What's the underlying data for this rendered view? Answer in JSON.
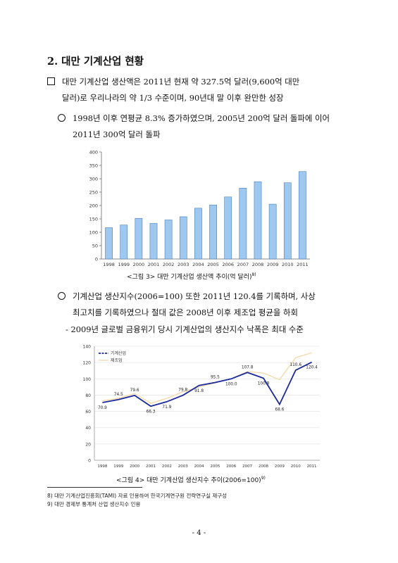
{
  "heading": "2. 대만 기계산업 현황",
  "bullet1": {
    "line1": "대만 기계산업 생산액은 2011년 현재 약 327.5억 달러(9,600억 대만",
    "line2": "달러)로 우리나라의 약 1/3 수준이며, 90년대 말 이후 완만한 성장"
  },
  "bullet2": {
    "line1": "1998년 이후 연평균 8.3% 증가하였으며, 2005년 200억 달러 돌파에 이어",
    "line2": "2011년 300억 달러 돌파"
  },
  "figure3": {
    "caption": "<그림 3> 대만 기계산업 생산액 추이(억 달러)",
    "footnote_ref": "8)"
  },
  "bullet3": {
    "line1": "기계산업 생산지수(2006=100) 또한 2011년 120.4를 기록하며, 사상",
    "line2": "최고치를 기록하였으나 절대 값은 2008년 이후 제조업 평균을 하회"
  },
  "sub_bullet": "- 2009년 글로벌 금융위기 당시 기계산업의 생산지수 낙폭은 최대 수준",
  "figure4": {
    "caption": "<그림 4> 대만 기계산업 생산지수 추이(2006=100)",
    "footnote_ref": "9)"
  },
  "footnotes": [
    "8) 대만 기계산업진흥회(TAMI) 자료 인용하여 한국기계연구원 전략연구실 재구성",
    "9) 대만 경제부 통계처 산업 생산지수 인용"
  ],
  "page_number": "- 4 -",
  "colors": {
    "bar_fill": "#9ec8f0",
    "bar_stroke": "#4a7fb5",
    "machinery_line": "#1b2a9a",
    "manufacturing_line": "#f5d8a8"
  },
  "chart_data": [
    {
      "type": "bar",
      "categories": [
        "1998",
        "1999",
        "2000",
        "2001",
        "2002",
        "2003",
        "2004",
        "2005",
        "2006",
        "2007",
        "2008",
        "2009",
        "2010",
        "2011"
      ],
      "values": [
        117,
        127,
        152,
        133,
        146,
        158,
        190,
        202,
        232,
        265,
        289,
        205,
        285,
        327
      ],
      "ylim": [
        0,
        400
      ],
      "yticks": [
        "0",
        "50",
        "100",
        "150",
        "200",
        "250",
        "300",
        "350",
        "400"
      ],
      "grid": false
    },
    {
      "type": "line",
      "x": [
        "1998",
        "1999",
        "2000",
        "2001",
        "2002",
        "2003",
        "2004",
        "2005",
        "2006",
        "2007",
        "2008",
        "2009",
        "2010",
        "2011"
      ],
      "series": [
        {
          "name": "기계산업",
          "values": [
            70.9,
            74.5,
            79.6,
            66.3,
            71.9,
            79.8,
            91.8,
            95.5,
            100.0,
            107.8,
            100.8,
            68.6,
            110.6,
            120.4
          ],
          "labels": [
            "70.9",
            "74.5",
            "79.6",
            "66.3",
            "71.9",
            "79.8",
            "91.8",
            "95.5",
            "100.0",
            "107.8",
            "100.8",
            "68.6",
            "110.6",
            "120.4"
          ]
        },
        {
          "name": "제조업",
          "values": [
            73,
            76,
            82,
            70,
            76,
            84,
            90,
            95,
            100,
            109,
            107,
            99,
            126,
            132
          ]
        }
      ],
      "ylim": [
        0,
        140
      ],
      "yticks": [
        "0",
        "20",
        "40",
        "60",
        "80",
        "100",
        "120",
        "140"
      ],
      "legend": "top-left",
      "grid": true
    }
  ]
}
